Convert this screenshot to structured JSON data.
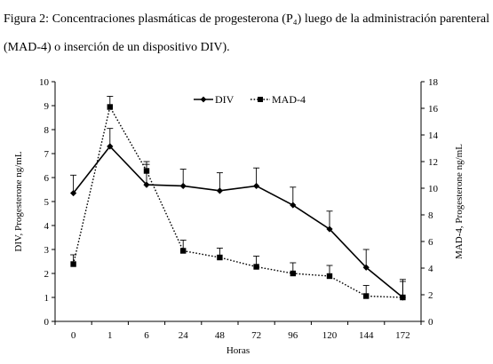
{
  "caption": "Figura 2: Concentraciones plasmáticas de progesterona (P₄) luego de la administración parenteral (MAD-4) o inserción de un dispositivo DIV).",
  "chart_data": {
    "type": "line",
    "categories": [
      "0",
      "1",
      "6",
      "24",
      "48",
      "72",
      "96",
      "120",
      "144",
      "172"
    ],
    "xlabel": "Horas",
    "ylabel_left": "DIV, Progesterone ng/mL",
    "ylabel_right": "MAD-4, Progesterone ng/mL",
    "ylim_left": [
      0,
      10
    ],
    "ylim_right": [
      0,
      18
    ],
    "yticks_left": [
      "0",
      "1",
      "2",
      "3",
      "4",
      "5",
      "6",
      "7",
      "8",
      "9",
      "10"
    ],
    "yticks_right": [
      "0",
      "2",
      "4",
      "6",
      "8",
      "10",
      "12",
      "14",
      "16",
      "18"
    ],
    "grid": false,
    "legend_position": "top-center",
    "series": [
      {
        "name": "DIV",
        "axis": "left",
        "style": "solid",
        "marker": "diamond",
        "color": "#000000",
        "values": [
          5.35,
          7.3,
          5.7,
          5.65,
          5.45,
          5.65,
          4.85,
          3.85,
          2.25,
          1.0
        ],
        "error_upper": [
          0.75,
          0.75,
          0.85,
          0.7,
          0.75,
          0.75,
          0.75,
          0.75,
          0.75,
          0.75
        ]
      },
      {
        "name": "MAD-4",
        "axis": "right",
        "style": "dotted",
        "marker": "square",
        "color": "#000000",
        "values": [
          4.3,
          16.1,
          11.3,
          5.3,
          4.8,
          4.1,
          3.6,
          3.4,
          1.9,
          1.8
        ],
        "error_upper": [
          0.7,
          0.8,
          0.7,
          0.8,
          0.7,
          0.8,
          0.8,
          0.8,
          0.8,
          1.2
        ]
      }
    ]
  }
}
